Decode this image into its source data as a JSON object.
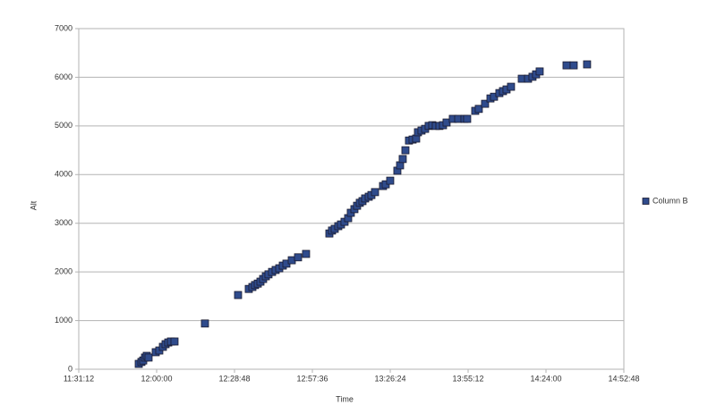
{
  "chart_data": {
    "type": "scatter",
    "x_label": "Time",
    "y_label": "Alt",
    "xlim": [
      41472,
      53568
    ],
    "xticks": [
      {
        "value": 41472,
        "label": "11:31:12"
      },
      {
        "value": 43200,
        "label": "12:00:00"
      },
      {
        "value": 44928,
        "label": "12:28:48"
      },
      {
        "value": 46656,
        "label": "12:57:36"
      },
      {
        "value": 48384,
        "label": "13:26:24"
      },
      {
        "value": 50112,
        "label": "13:55:12"
      },
      {
        "value": 51840,
        "label": "14:24:00"
      },
      {
        "value": 53568,
        "label": "14:52:48"
      }
    ],
    "ylim": [
      0,
      7000
    ],
    "yticks": [
      0,
      1000,
      2000,
      3000,
      4000,
      5000,
      6000,
      7000
    ],
    "grid": true,
    "legend": "right",
    "series": [
      {
        "name": "Column B",
        "color": "#2f4b8c",
        "x": [
          42803,
          42862,
          42902,
          42942,
          42981,
          43021,
          43180,
          43259,
          43339,
          43398,
          43458,
          43518,
          43597,
          44272,
          45007,
          45245,
          45325,
          45384,
          45444,
          45504,
          45563,
          45623,
          45682,
          45762,
          45841,
          45921,
          46000,
          46080,
          46199,
          46338,
          46516,
          47033,
          47092,
          47152,
          47231,
          47291,
          47370,
          47450,
          47509,
          47589,
          47648,
          47708,
          47768,
          47827,
          47907,
          47966,
          48046,
          48224,
          48284,
          48383,
          48542,
          48602,
          48661,
          48721,
          48800,
          48880,
          48959,
          48999,
          49078,
          49158,
          49237,
          49317,
          49396,
          49476,
          49555,
          49634,
          49773,
          49893,
          50032,
          50091,
          50270,
          50349,
          50488,
          50608,
          50687,
          50806,
          50886,
          50965,
          51064,
          51303,
          51442,
          51541,
          51620,
          51700,
          52296,
          52455,
          52752
        ],
        "values": [
          110,
          150,
          180,
          240,
          275,
          240,
          350,
          385,
          460,
          515,
          550,
          570,
          570,
          940,
          1525,
          1650,
          1690,
          1730,
          1760,
          1800,
          1855,
          1910,
          1950,
          2000,
          2040,
          2075,
          2130,
          2170,
          2240,
          2300,
          2370,
          2790,
          2850,
          2885,
          2940,
          2975,
          3030,
          3105,
          3215,
          3290,
          3360,
          3420,
          3455,
          3510,
          3545,
          3580,
          3640,
          3765,
          3800,
          3875,
          4080,
          4190,
          4320,
          4500,
          4700,
          4720,
          4740,
          4870,
          4905,
          4940,
          5000,
          5015,
          5000,
          5000,
          5015,
          5070,
          5145,
          5145,
          5145,
          5145,
          5310,
          5350,
          5455,
          5565,
          5600,
          5675,
          5715,
          5750,
          5805,
          5970,
          5970,
          6010,
          6060,
          6120,
          6245,
          6245,
          6265
        ]
      }
    ]
  }
}
